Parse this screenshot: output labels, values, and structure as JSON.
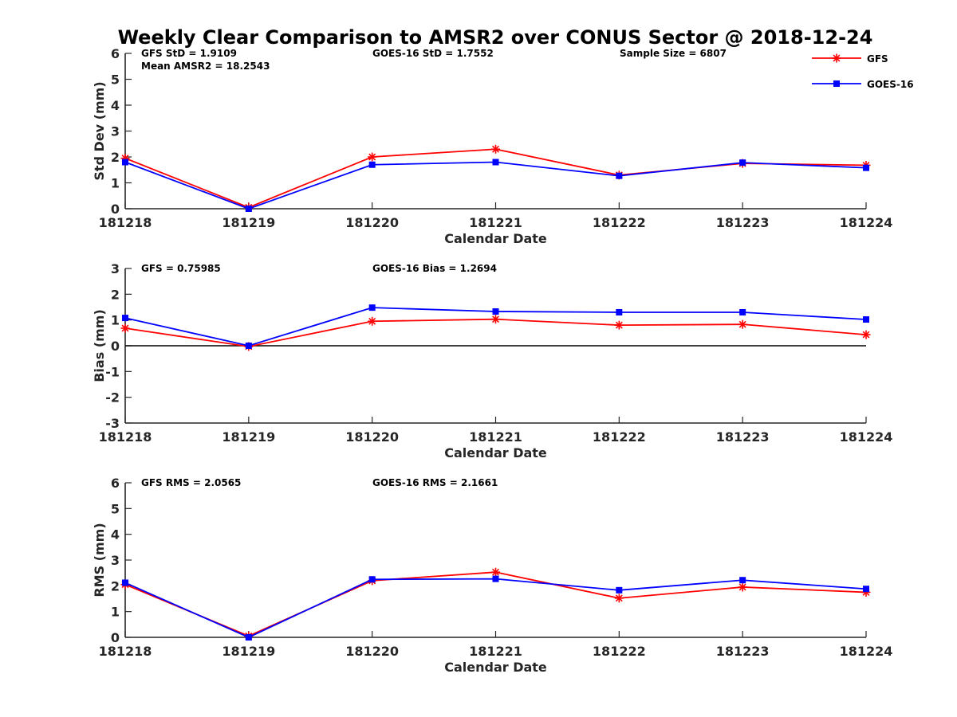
{
  "figure": {
    "title": "Weekly Clear Comparison to AMSR2 over CONUS Sector @ 2018-12-24"
  },
  "legend": {
    "placement": "top-right",
    "entries": [
      {
        "label": "GFS",
        "color": "#ff0000",
        "marker": "asterisk"
      },
      {
        "label": "GOES-16",
        "color": "#0000ff",
        "marker": "square"
      }
    ]
  },
  "chart_data": [
    {
      "type": "line",
      "xlabel": "Calendar Date",
      "ylabel": "Std Dev (mm)",
      "ylim": [
        0,
        6
      ],
      "yticks": [
        0,
        1,
        2,
        3,
        4,
        5,
        6
      ],
      "zero_line": false,
      "categories": [
        "181218",
        "181219",
        "181220",
        "181221",
        "181222",
        "181223",
        "181224"
      ],
      "series": [
        {
          "name": "GFS",
          "color": "#ff0000",
          "marker": "asterisk",
          "values": [
            1.95,
            0.05,
            2.0,
            2.3,
            1.3,
            1.75,
            1.68
          ]
        },
        {
          "name": "GOES-16",
          "color": "#0000ff",
          "marker": "square",
          "values": [
            1.8,
            0.0,
            1.7,
            1.8,
            1.27,
            1.78,
            1.58
          ]
        }
      ],
      "annotations": [
        {
          "text": "GFS StD = 1.9109",
          "anchor": "left"
        },
        {
          "text": "Mean AMSR2 = 18.2543",
          "anchor": "left-second-line"
        },
        {
          "text": "GOES-16 StD = 1.7552",
          "anchor": "middle"
        },
        {
          "text": "Sample Size = 6807",
          "anchor": "right"
        }
      ]
    },
    {
      "type": "line",
      "xlabel": "Calendar Date",
      "ylabel": "Bias (mm)",
      "ylim": [
        -3,
        3
      ],
      "yticks": [
        -3,
        -2,
        -1,
        0,
        1,
        2,
        3
      ],
      "zero_line": true,
      "categories": [
        "181218",
        "181219",
        "181220",
        "181221",
        "181222",
        "181223",
        "181224"
      ],
      "series": [
        {
          "name": "GFS",
          "color": "#ff0000",
          "marker": "asterisk",
          "values": [
            0.68,
            -0.03,
            0.95,
            1.03,
            0.8,
            0.83,
            0.43
          ]
        },
        {
          "name": "GOES-16",
          "color": "#0000ff",
          "marker": "square",
          "values": [
            1.08,
            0.0,
            1.48,
            1.33,
            1.3,
            1.3,
            1.02
          ]
        }
      ],
      "annotations": [
        {
          "text": "GFS = 0.75985",
          "anchor": "left"
        },
        {
          "text": "GOES-16 Bias  = 1.2694",
          "anchor": "middle"
        }
      ]
    },
    {
      "type": "line",
      "xlabel": "Calendar Date",
      "ylabel": "RMS (mm)",
      "ylim": [
        0,
        6
      ],
      "yticks": [
        0,
        1,
        2,
        3,
        4,
        5,
        6
      ],
      "zero_line": false,
      "categories": [
        "181218",
        "181219",
        "181220",
        "181221",
        "181222",
        "181223",
        "181224"
      ],
      "series": [
        {
          "name": "GFS",
          "color": "#ff0000",
          "marker": "asterisk",
          "values": [
            2.05,
            0.05,
            2.2,
            2.53,
            1.52,
            1.95,
            1.75
          ]
        },
        {
          "name": "GOES-16",
          "color": "#0000ff",
          "marker": "square",
          "values": [
            2.12,
            0.0,
            2.25,
            2.27,
            1.83,
            2.22,
            1.88
          ]
        }
      ],
      "annotations": [
        {
          "text": "GFS RMS = 2.0565",
          "anchor": "left"
        },
        {
          "text": "GOES-16 RMS = 2.1661",
          "anchor": "middle"
        }
      ]
    }
  ]
}
